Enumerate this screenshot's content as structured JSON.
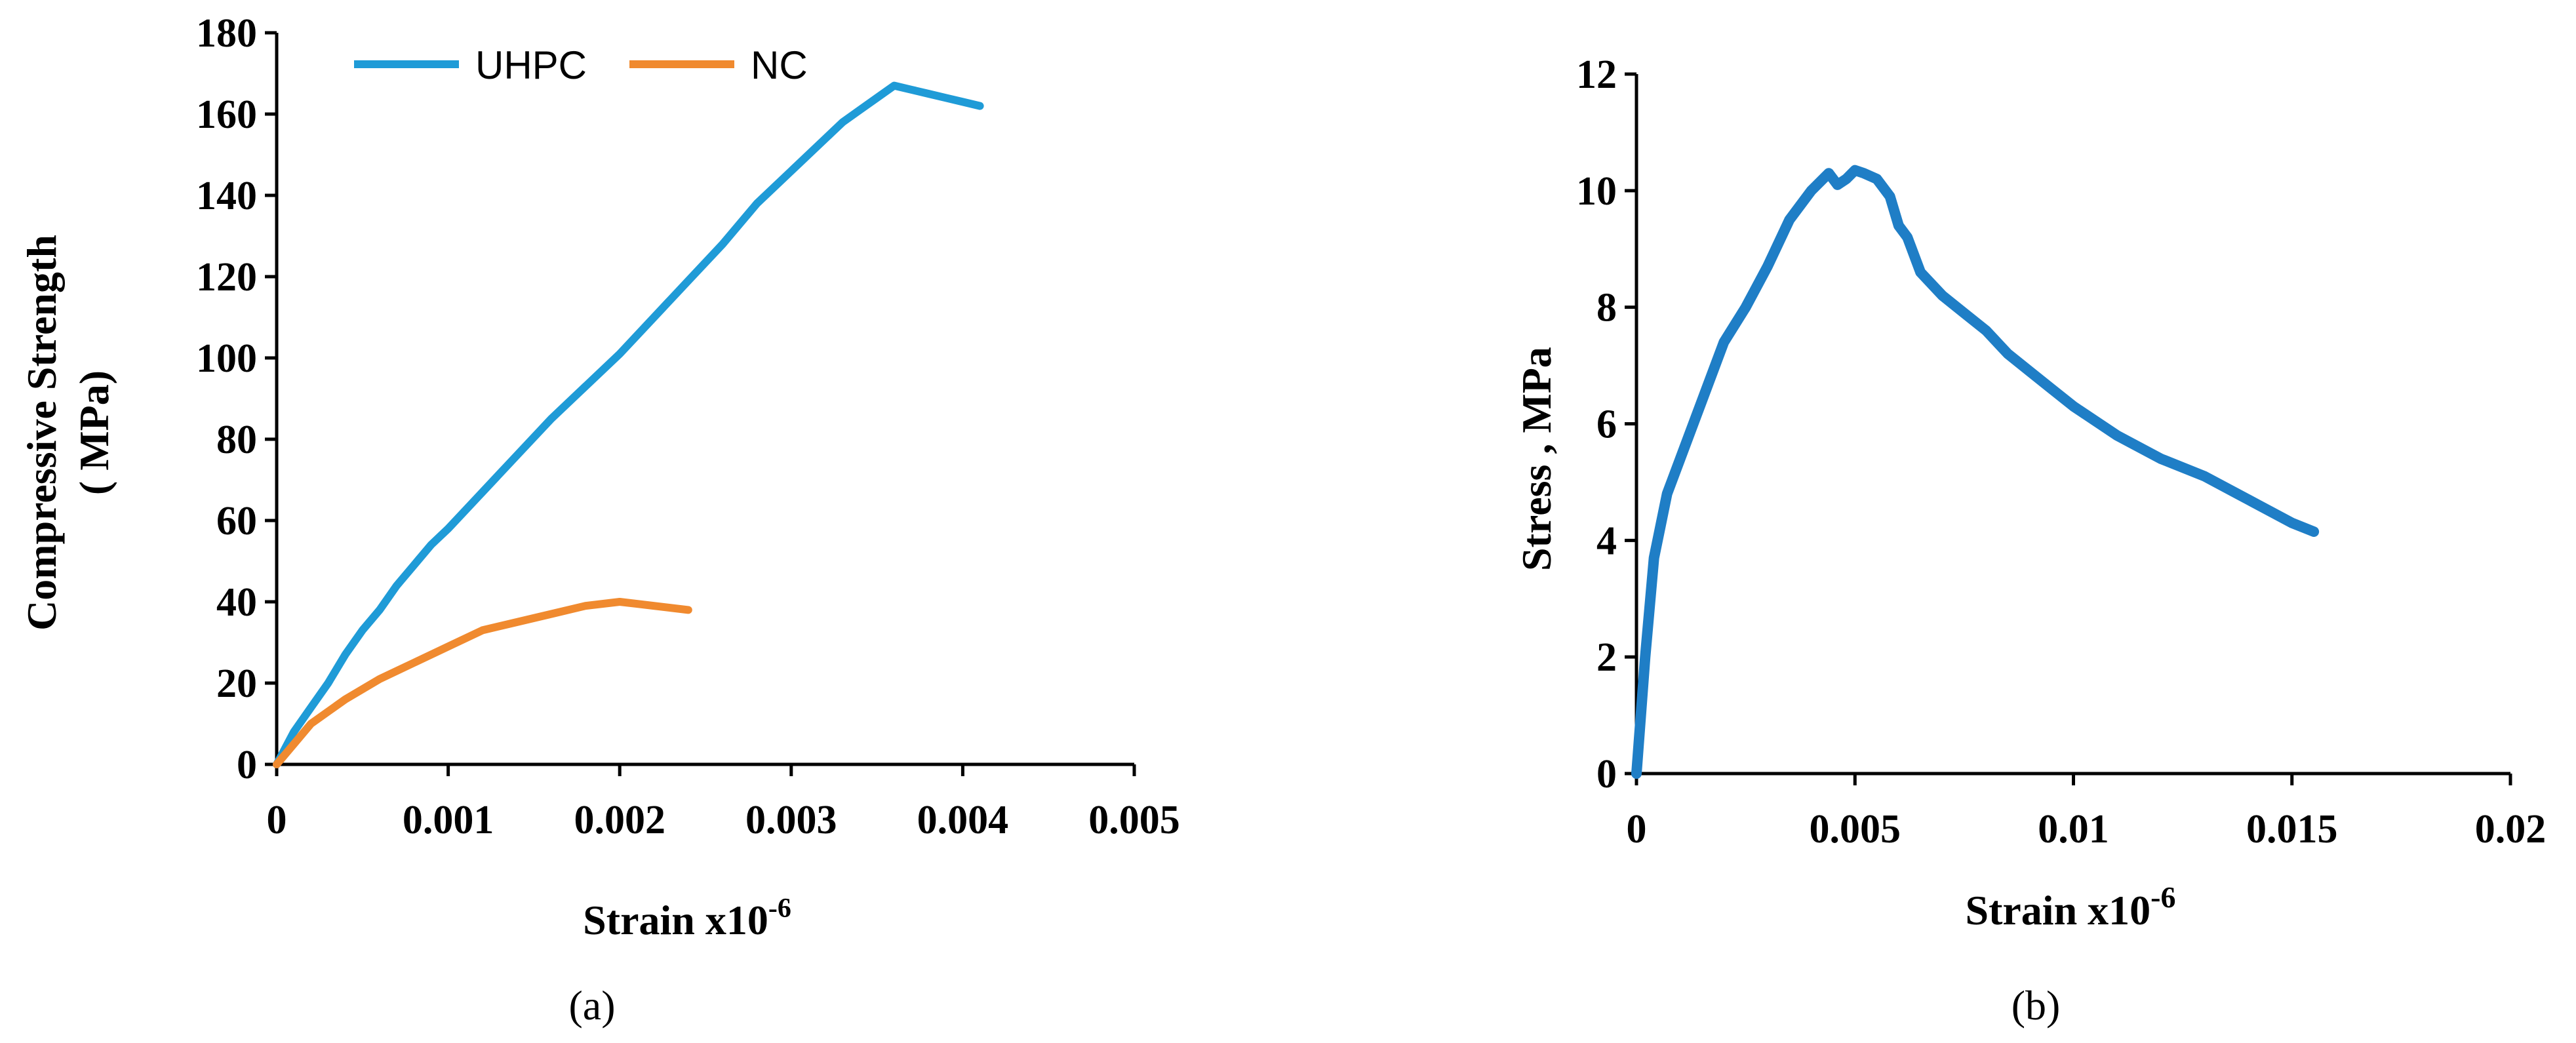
{
  "chart_data": [
    {
      "id": "a",
      "type": "line",
      "caption": "(a)",
      "title": "",
      "xlabel": "Strain x10",
      "xlabel_superscript": "-6",
      "ylabel_lines": [
        "Compressive Strength",
        "( MPa)"
      ],
      "xlim": [
        0,
        0.005
      ],
      "ylim": [
        0,
        180
      ],
      "xticks": [
        "0",
        "0.001",
        "0.002",
        "0.003",
        "0.004",
        "0.005"
      ],
      "yticks": [
        "0",
        "20",
        "40",
        "60",
        "80",
        "100",
        "120",
        "140",
        "160",
        "180"
      ],
      "grid": false,
      "legend_position": "top",
      "series": [
        {
          "name": "UHPC",
          "color": "#1f9bd7",
          "x": [
            0,
            5e-05,
            0.0001,
            0.0002,
            0.0003,
            0.0004,
            0.0005,
            0.0006,
            0.0007,
            0.0008,
            0.0009,
            0.001,
            0.0012,
            0.0014,
            0.0016,
            0.0018,
            0.002,
            0.0022,
            0.0024,
            0.0026,
            0.0028,
            0.003,
            0.0032,
            0.0033,
            0.0034,
            0.0035,
            0.0036,
            0.0037,
            0.0038,
            0.0039,
            0.004,
            0.0041
          ],
          "y": [
            0,
            4,
            8,
            14,
            20,
            27,
            33,
            38,
            44,
            49,
            54,
            58,
            67,
            76,
            85,
            93,
            101,
            110,
            119,
            128,
            138,
            146,
            154,
            158,
            161,
            164,
            167,
            166,
            165,
            164,
            163,
            162
          ]
        },
        {
          "name": "NC",
          "color": "#f08a2f",
          "x": [
            0,
            0.0001,
            0.0002,
            0.0004,
            0.0006,
            0.0008,
            0.001,
            0.0012,
            0.0014,
            0.0016,
            0.0018,
            0.002,
            0.0021,
            0.0022,
            0.0023,
            0.0024
          ],
          "y": [
            0,
            5,
            10,
            16,
            21,
            25,
            29,
            33,
            35,
            37,
            39,
            40,
            39.5,
            39,
            38.5,
            38
          ]
        }
      ]
    },
    {
      "id": "b",
      "type": "line",
      "caption": "(b)",
      "title": "",
      "xlabel": "Strain x10",
      "xlabel_superscript": "-6",
      "ylabel": "Stress , MPa",
      "xlim": [
        0,
        0.02
      ],
      "ylim": [
        0,
        12
      ],
      "xticks": [
        "0",
        "0.005",
        "0.01",
        "0.015",
        "0.02"
      ],
      "yticks": [
        "0",
        "2",
        "4",
        "6",
        "8",
        "10",
        "12"
      ],
      "grid": false,
      "series": [
        {
          "color": "#1f7ec6",
          "x": [
            0,
            0.0002,
            0.0004,
            0.0007,
            0.001,
            0.0015,
            0.002,
            0.0025,
            0.003,
            0.0035,
            0.004,
            0.0044,
            0.0046,
            0.0048,
            0.005,
            0.0052,
            0.0055,
            0.0058,
            0.006,
            0.0062,
            0.0065,
            0.007,
            0.0075,
            0.008,
            0.0085,
            0.009,
            0.0095,
            0.01,
            0.011,
            0.012,
            0.013,
            0.014,
            0.015,
            0.0155
          ],
          "y": [
            0,
            2,
            3.7,
            4.8,
            5.4,
            6.4,
            7.4,
            8.0,
            8.7,
            9.5,
            10.0,
            10.3,
            10.1,
            10.2,
            10.35,
            10.3,
            10.2,
            9.9,
            9.4,
            9.2,
            8.6,
            8.2,
            7.9,
            7.6,
            7.2,
            6.9,
            6.6,
            6.3,
            5.8,
            5.4,
            5.1,
            4.7,
            4.3,
            4.15
          ]
        }
      ]
    }
  ]
}
